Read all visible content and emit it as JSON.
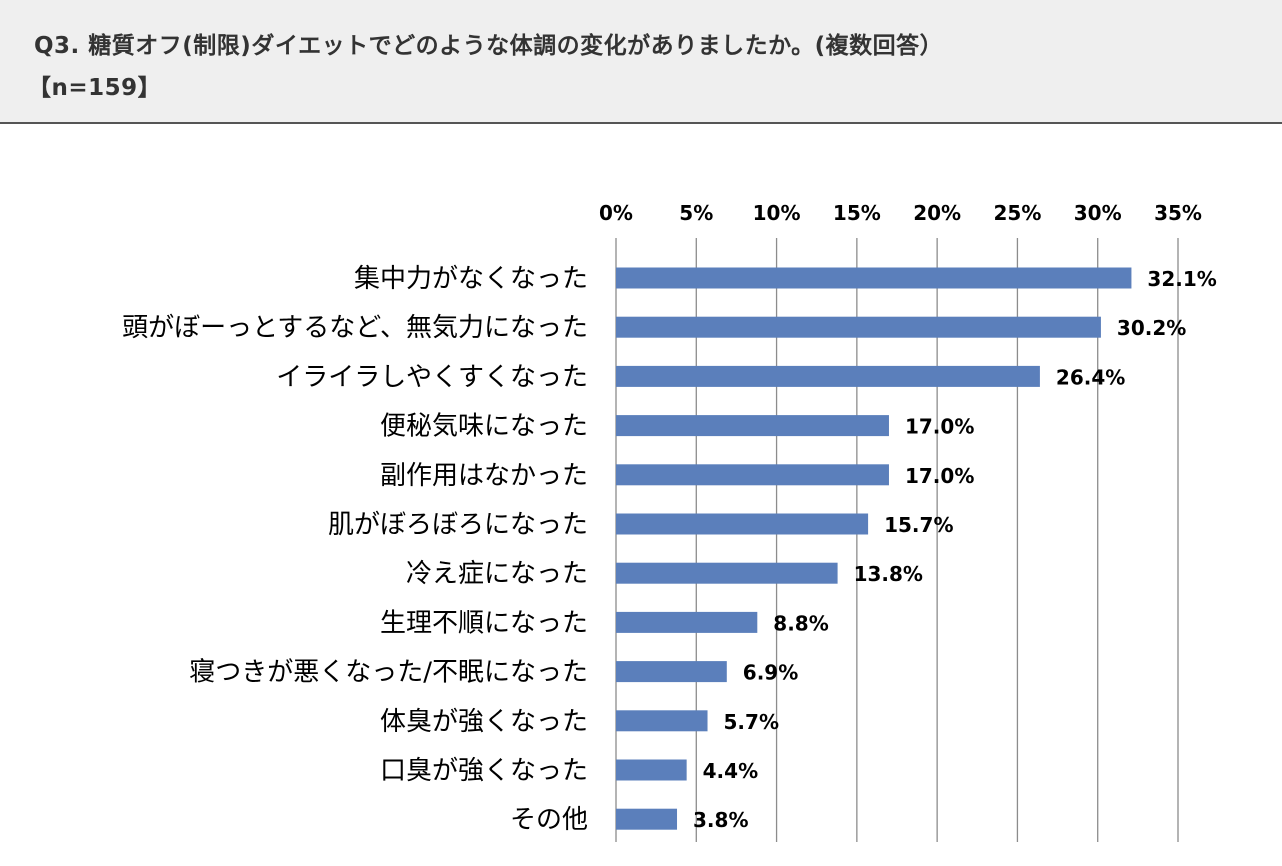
{
  "header": {
    "line1": "Q3. 糖質オフ(制限)ダイエットでどのような体調の変化がありましたか。(複数回答）",
    "line2": "【n=159】"
  },
  "chart_data": {
    "type": "bar",
    "orientation": "horizontal",
    "title": "Q3. 糖質オフ(制限)ダイエットでどのような体調の変化がありましたか。(複数回答）",
    "sample_size": "【n=159】",
    "categories": [
      "集中力がなくなった",
      "頭がぼーっとするなど、無気力になった",
      "イライラしやくすくなった",
      "便秘気味になった",
      "副作用はなかった",
      "肌がぼろぼろになった",
      "冷え症になった",
      "生理不順になった",
      "寝つきが悪くなった/不眠になった",
      "体臭が強くなった",
      "口臭が強くなった",
      "その他"
    ],
    "values": [
      32.1,
      30.2,
      26.4,
      17.0,
      17.0,
      15.7,
      13.8,
      8.8,
      6.9,
      5.7,
      4.4,
      3.8
    ],
    "value_labels": [
      "32.1%",
      "30.2%",
      "26.4%",
      "17.0%",
      "17.0%",
      "15.7%",
      "13.8%",
      "8.8%",
      "6.9%",
      "5.7%",
      "4.4%",
      "3.8%"
    ],
    "xlim": [
      0,
      35
    ],
    "ticks": [
      0,
      5,
      10,
      15,
      20,
      25,
      30,
      35
    ],
    "tick_labels": [
      "0%",
      "5%",
      "10%",
      "15%",
      "20%",
      "25%",
      "30%",
      "35%"
    ],
    "axis_position": "top",
    "grid": true,
    "bar_color": "#5b7fbb",
    "grid_color": "#8c8c8c"
  }
}
